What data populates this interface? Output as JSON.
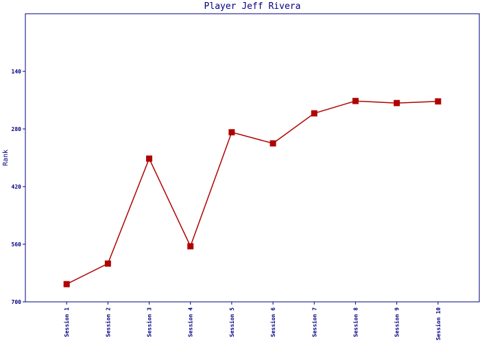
{
  "chart_data": {
    "type": "line",
    "title": "Player Jeff Rivera",
    "y_label": "Rank",
    "categories": [
      "Session 1",
      "Session 2",
      "Session 3",
      "Session 4",
      "Session 5",
      "Session 6",
      "Session 7",
      "Session 8",
      "Session 9",
      "Session 10"
    ],
    "series": [
      {
        "name": "Rank",
        "color": "#b00000",
        "values": [
          657,
          607,
          352,
          565,
          288,
          315,
          242,
          212,
          217,
          213
        ]
      }
    ],
    "ylim": [
      0,
      700
    ],
    "y_inverted": true,
    "yticks": [
      140,
      280,
      420,
      560,
      700
    ]
  }
}
